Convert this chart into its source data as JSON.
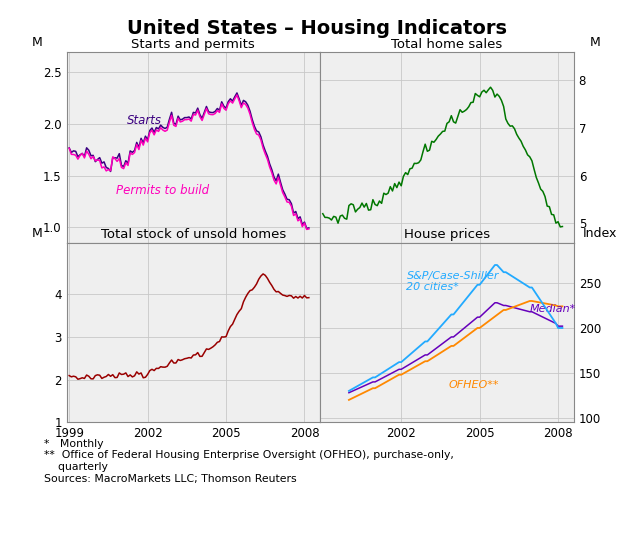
{
  "title": "United States – Housing Indicators",
  "title_fontsize": 14,
  "footnotes": "*   Monthly\n**  Office of Federal Housing Enterprise Oversight (OFHEO), purchase-only,\n    quarterly\nSources: MacroMarkets LLC; Thomson Reuters",
  "panels": {
    "top_left": {
      "title": "Starts and permits",
      "ylim": [
        0.85,
        2.7
      ],
      "yticks": [
        1.0,
        1.5,
        2.0,
        2.5
      ],
      "xlim": [
        1998.9,
        2008.6
      ],
      "xticks": [
        1999,
        2002,
        2005,
        2008
      ]
    },
    "top_right": {
      "title": "Total home sales",
      "ylim": [
        4.6,
        8.6
      ],
      "yticks": [
        5,
        6,
        7,
        8
      ],
      "xlim": [
        1998.9,
        2008.6
      ],
      "xticks": [
        2002,
        2005,
        2008
      ]
    },
    "bottom_left": {
      "title": "Total stock of unsold homes",
      "ylim": [
        1.0,
        5.2
      ],
      "yticks": [
        1,
        2,
        3,
        4
      ],
      "xlim": [
        1998.9,
        2008.6
      ],
      "xticks": [
        1999,
        2002,
        2005,
        2008
      ]
    },
    "bottom_right": {
      "title": "House prices",
      "ylim": [
        95,
        295
      ],
      "yticks": [
        100,
        150,
        200,
        250
      ],
      "xlim": [
        1998.9,
        2008.6
      ],
      "xticks": [
        2002,
        2005,
        2008
      ]
    }
  },
  "colors": {
    "starts": "#3B0080",
    "permits": "#FF00BB",
    "home_sales": "#007700",
    "unsold": "#990000",
    "case_shiller": "#22AAFF",
    "median": "#6600BB",
    "ofheo": "#FF8800",
    "grid": "#C8C8C8",
    "background": "#EFEFEF"
  },
  "line_width": 1.1
}
